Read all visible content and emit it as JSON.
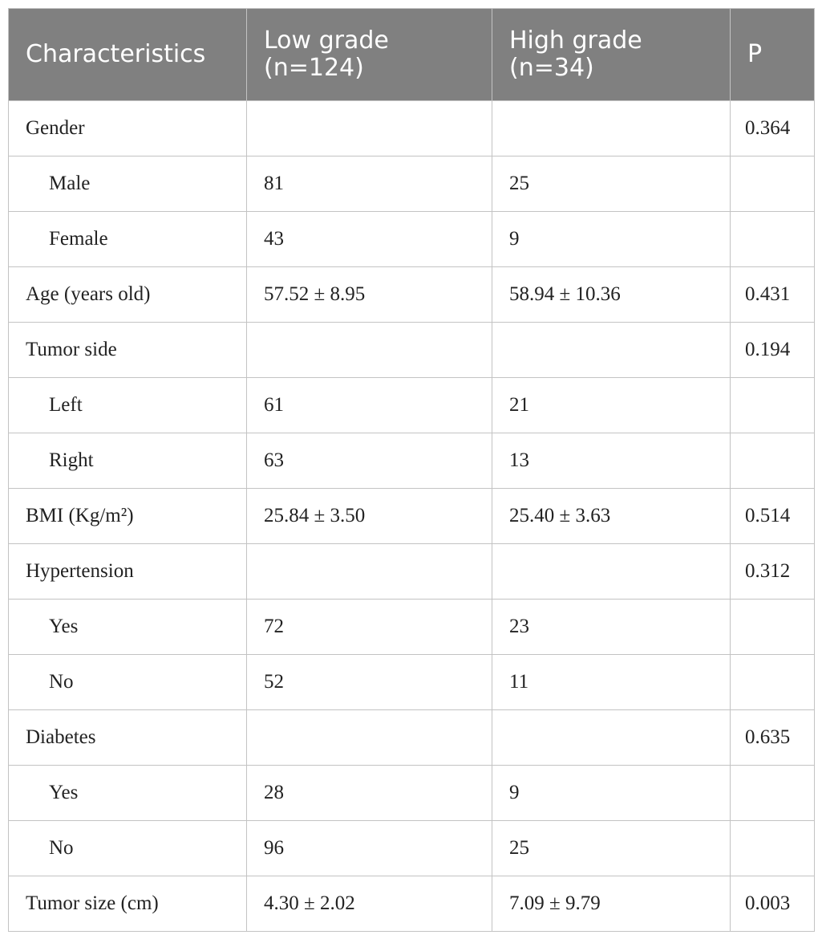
{
  "table": {
    "header": [
      "Characteristics",
      "Low grade (n=124)",
      "High grade (n=34)",
      "P"
    ],
    "rows": [
      {
        "cells": [
          "Gender",
          null,
          null,
          "0.364"
        ],
        "children": [
          [
            "Male",
            "81",
            "25",
            null
          ],
          [
            "Female",
            "43",
            "9",
            null
          ]
        ]
      },
      {
        "cells": [
          "Age (years old)",
          "57.52 ± 8.95",
          "58.94 ± 10.36",
          "0.431"
        ],
        "children": []
      },
      {
        "cells": [
          "Tumor side",
          null,
          null,
          "0.194"
        ],
        "children": [
          [
            "Left",
            "61",
            "21",
            null
          ],
          [
            "Right",
            "63",
            "13",
            null
          ]
        ]
      },
      {
        "cells": [
          "BMI (Kg/m²)",
          "25.84 ± 3.50",
          "25.40 ± 3.63",
          "0.514"
        ],
        "children": []
      },
      {
        "cells": [
          "Hypertension",
          null,
          null,
          "0.312"
        ],
        "children": [
          [
            "Yes",
            "72",
            "23",
            null
          ],
          [
            "No",
            "52",
            "11",
            null
          ]
        ]
      },
      {
        "cells": [
          "Diabetes",
          null,
          null,
          "0.635"
        ],
        "children": [
          [
            "Yes",
            "28",
            "9",
            null
          ],
          [
            "No",
            "96",
            "25",
            null
          ]
        ]
      },
      {
        "cells": [
          "Tumor size (cm)",
          "4.30 ± 2.02",
          "7.09 ± 9.79",
          "0.003"
        ],
        "children": []
      }
    ]
  }
}
